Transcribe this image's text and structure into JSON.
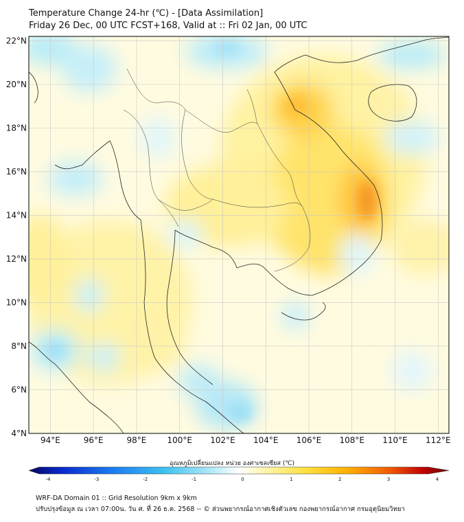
{
  "header": {
    "title": "Temperature Change 24-hr (℃) - [Data Assimilation]",
    "subtitle": "Friday 26 Dec, 00 UTC FCST+168, Valid at :: Fri 02 Jan, 00 UTC"
  },
  "map": {
    "lon_range": [
      93,
      112.5
    ],
    "lat_range": [
      4,
      22.2
    ],
    "lon_ticks": [
      "94°E",
      "96°E",
      "98°E",
      "100°E",
      "102°E",
      "104°E",
      "106°E",
      "108°E",
      "110°E",
      "112°E"
    ],
    "lat_ticks": [
      "22°N",
      "20°N",
      "18°N",
      "16°N",
      "14°N",
      "12°N",
      "10°N",
      "8°N",
      "6°N",
      "4°N"
    ],
    "grid": true,
    "field": "24-hr temperature change",
    "dominant_pattern": "warming over eastern Indochina, max near 109°E 15°N; weak cooling patches over Andaman Sea and Gulf of Thailand"
  },
  "colorbar": {
    "label": "อุณหภูมิเปลี่ยนแปลง หน่วย องศาเซลเซียส (℃)",
    "ticks": [
      "-4",
      "-3",
      "-2",
      "-1",
      "0",
      "1",
      "2",
      "3",
      "4"
    ],
    "range": [
      -4,
      4
    ],
    "colors": [
      "#08085e",
      "#0a2ad0",
      "#1c7cf0",
      "#3cc0f0",
      "#b8ecf8",
      "#ffffff",
      "#fff6b0",
      "#ffe040",
      "#ffb000",
      "#f05a00",
      "#c00000",
      "#6a0000"
    ]
  },
  "footer": {
    "line1": "WRF-DA Domain 01 :: Grid Resolution 9km x 9km",
    "line2": "ปรับปรุงข้อมูล ณ เวลา 07:00น. วัน ศ. ที่ 26 ธ.ค. 2568 -- © ส่วนพยากรณ์อากาศเชิงตัวเลข กองพยากรณ์อากาศ กรมอุตุนิยมวิทยา"
  }
}
